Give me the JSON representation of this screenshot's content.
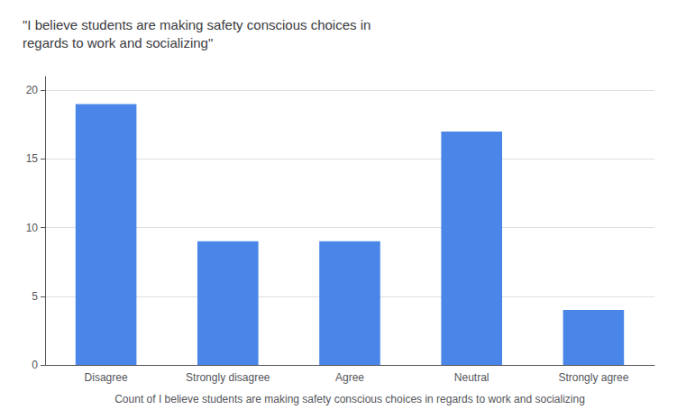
{
  "chart_data": {
    "type": "bar",
    "title": "\"I believe students are making safety conscious choices in\nregards to work and socializing\"",
    "xlabel": "Count of I believe students are making safety conscious choices in regards to work and socializing",
    "categories": [
      "Disagree",
      "Strongly disagree",
      "Agree",
      "Neutral",
      "Strongly agree"
    ],
    "values": [
      19,
      9,
      9,
      17,
      4
    ],
    "color": "#4a86e8",
    "ylim": [
      0,
      21
    ],
    "yticks": [
      0,
      5,
      10,
      15,
      20
    ],
    "grid": true
  }
}
